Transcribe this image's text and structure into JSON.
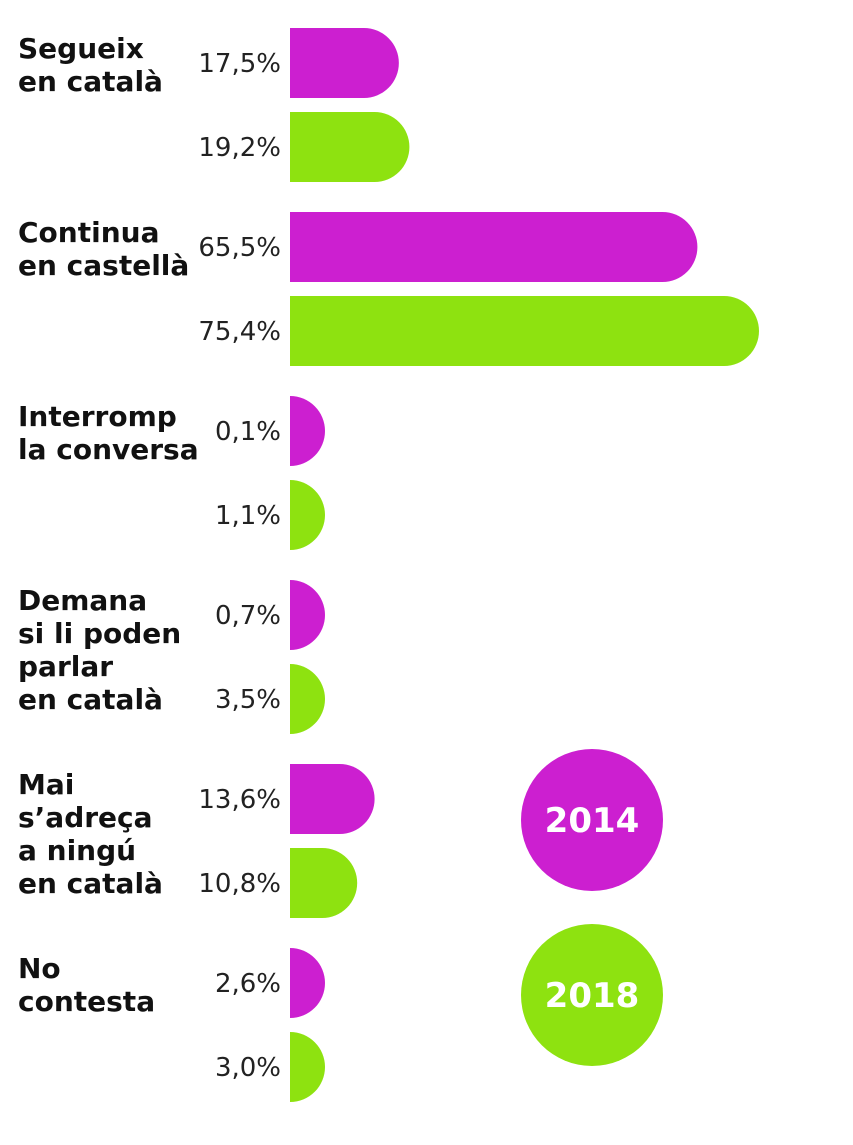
{
  "chart_data": {
    "type": "bar",
    "orientation": "horizontal",
    "categories": [
      [
        "Segueix",
        "en català"
      ],
      [
        "Continua",
        "en castellà"
      ],
      [
        "Interromp",
        "la conversa"
      ],
      [
        "Demana",
        "si li poden",
        "parlar",
        "en català"
      ],
      [
        "Mai",
        "s’adreça",
        "a ningú",
        "en català"
      ],
      [
        "No",
        "contesta"
      ]
    ],
    "series": [
      {
        "name": "2014",
        "color": "#cc1fd0",
        "values": [
          17.5,
          65.5,
          0.1,
          0.7,
          13.6,
          2.6
        ],
        "labels": [
          "17,5%",
          "65,5%",
          "0,1%",
          "0,7%",
          "13,6%",
          "2,6%"
        ]
      },
      {
        "name": "2018",
        "color": "#8ee210",
        "values": [
          19.2,
          75.4,
          1.1,
          3.5,
          10.8,
          3.0
        ],
        "labels": [
          "19,2%",
          "75,4%",
          "1,1%",
          "3,5%",
          "10,8%",
          "3,0%"
        ]
      }
    ],
    "unit": "%",
    "legend_placement": "bottom-right",
    "grid": false
  }
}
